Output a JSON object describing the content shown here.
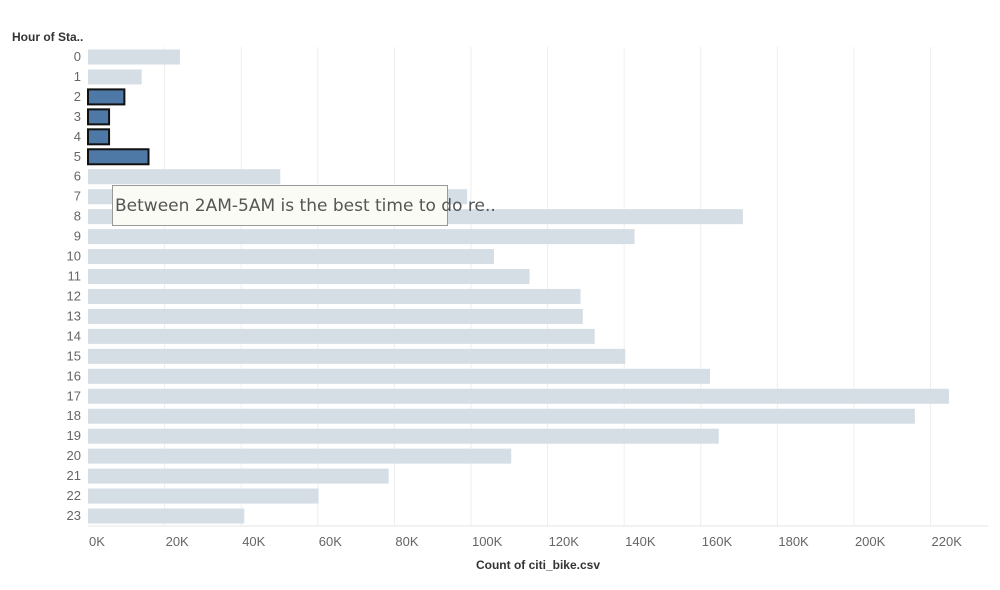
{
  "chart_data": {
    "type": "bar",
    "orientation": "horizontal",
    "row_header": "Hour of Sta..",
    "xlabel": "Count of citi_bike.csv",
    "categories": [
      "0",
      "1",
      "2",
      "3",
      "4",
      "5",
      "6",
      "7",
      "8",
      "9",
      "10",
      "11",
      "12",
      "13",
      "14",
      "15",
      "16",
      "17",
      "18",
      "19",
      "20",
      "21",
      "22",
      "23"
    ],
    "values": [
      24000,
      14000,
      9500,
      5500,
      5500,
      15800,
      50200,
      99000,
      171000,
      142700,
      106000,
      115300,
      128600,
      129200,
      132300,
      140300,
      162400,
      224800,
      215900,
      164700,
      110500,
      78500,
      60200,
      40800
    ],
    "highlighted": [
      "2",
      "3",
      "4",
      "5"
    ],
    "xlim": [
      0,
      235000
    ],
    "x_ticks": [
      0,
      20000,
      40000,
      60000,
      80000,
      100000,
      120000,
      140000,
      160000,
      180000,
      200000,
      220000
    ],
    "x_tick_labels": [
      "0K",
      "20K",
      "40K",
      "60K",
      "80K",
      "100K",
      "120K",
      "140K",
      "160K",
      "180K",
      "200K",
      "220K"
    ],
    "grid": true,
    "colors": {
      "bar": "#d5dde5",
      "highlight": "#4e79a7",
      "highlight_border": "#111111",
      "grid": "#eeeeee",
      "tick_text": "#666666"
    },
    "annotation": "Between 2AM-5AM is the best time to do re.."
  }
}
